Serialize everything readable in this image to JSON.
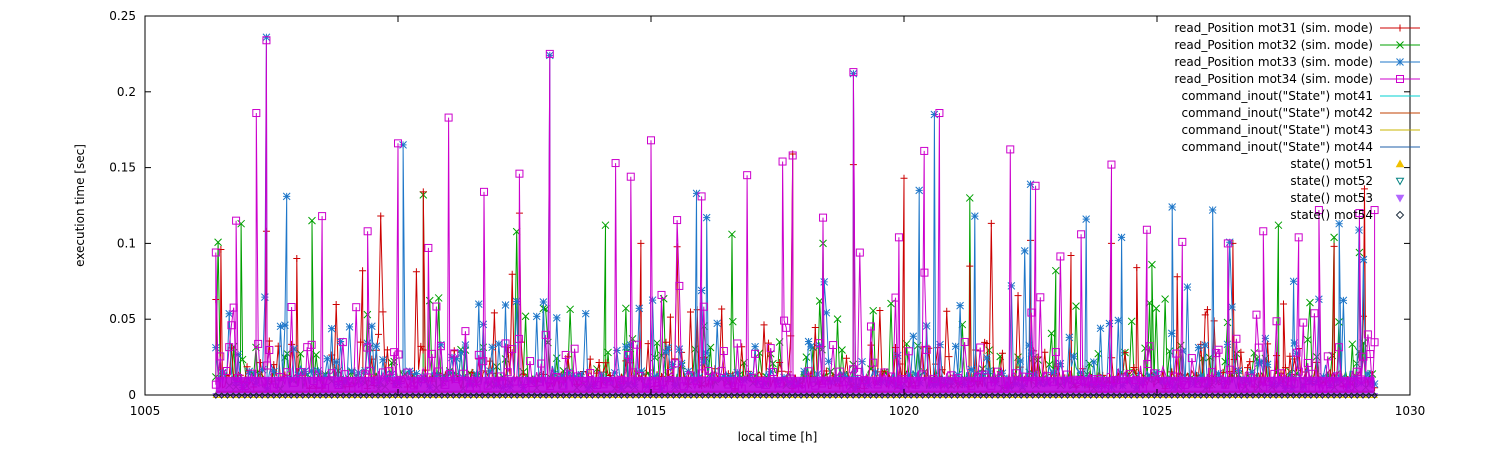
{
  "chart_data": {
    "type": "line",
    "xlabel": "local time [h]",
    "ylabel": "execution time [sec]",
    "xlim": [
      1005,
      1030
    ],
    "ylim": [
      0,
      0.25
    ],
    "x_ticks": [
      1005,
      1010,
      1015,
      1020,
      1025,
      1030
    ],
    "y_ticks": [
      0,
      0.05,
      0.1,
      0.15,
      0.2,
      0.25
    ],
    "x_tick_labels": [
      "1005",
      "1010",
      "1015",
      "1020",
      "1025",
      "1030"
    ],
    "y_tick_labels": [
      "0",
      "0.05",
      "0.1",
      "0.15",
      "0.2",
      "0.25"
    ],
    "grid": false,
    "legend_position": "top-right",
    "x_range": [
      1006.4,
      1029.3
    ],
    "series": [
      {
        "name": "read_Position mot31 (sim. mode)",
        "color": "#cc0000",
        "style": "linespoints",
        "marker": "plus",
        "peaks": [
          [
            1006.5,
            0.096
          ],
          [
            1007.4,
            0.108
          ],
          [
            1008.0,
            0.09
          ],
          [
            1009.3,
            0.082
          ],
          [
            1010.5,
            0.134
          ],
          [
            1012.4,
            0.12
          ],
          [
            1014.8,
            0.1
          ],
          [
            1017.8,
            0.159
          ],
          [
            1019.0,
            0.152
          ],
          [
            1020.0,
            0.143
          ],
          [
            1021.3,
            0.085
          ],
          [
            1022.5,
            0.102
          ],
          [
            1023.3,
            0.092
          ],
          [
            1024.1,
            0.1
          ],
          [
            1024.6,
            0.084
          ],
          [
            1025.4,
            0.078
          ],
          [
            1026.5,
            0.1
          ],
          [
            1027.5,
            0.06
          ],
          [
            1028.5,
            0.098
          ],
          [
            1029.1,
            0.136
          ]
        ]
      },
      {
        "name": "read_Position mot32 (sim. mode)",
        "color": "#00a000",
        "style": "linespoints",
        "marker": "cross",
        "peaks": [
          [
            1006.9,
            0.113
          ],
          [
            1008.3,
            0.115
          ],
          [
            1010.5,
            0.132
          ],
          [
            1014.1,
            0.112
          ],
          [
            1016.6,
            0.106
          ],
          [
            1018.4,
            0.1
          ],
          [
            1021.3,
            0.13
          ],
          [
            1023.0,
            0.082
          ],
          [
            1024.9,
            0.086
          ],
          [
            1027.4,
            0.112
          ],
          [
            1028.5,
            0.104
          ],
          [
            1029.0,
            0.094
          ]
        ]
      },
      {
        "name": "read_Position mot33 (sim. mode)",
        "color": "#1f77c9",
        "style": "linespoints",
        "marker": "star",
        "peaks": [
          [
            1007.4,
            0.236
          ],
          [
            1007.8,
            0.131
          ],
          [
            1010.1,
            0.165
          ],
          [
            1013.0,
            0.224
          ],
          [
            1015.9,
            0.133
          ],
          [
            1016.1,
            0.117
          ],
          [
            1019.0,
            0.212
          ],
          [
            1020.3,
            0.135
          ],
          [
            1020.6,
            0.185
          ],
          [
            1021.4,
            0.118
          ],
          [
            1022.5,
            0.139
          ],
          [
            1023.6,
            0.116
          ],
          [
            1024.3,
            0.104
          ],
          [
            1025.3,
            0.124
          ],
          [
            1026.1,
            0.122
          ],
          [
            1027.7,
            0.075
          ],
          [
            1028.6,
            0.113
          ]
        ]
      },
      {
        "name": "read_Position mot34 (sim. mode)",
        "color": "#cc00cc",
        "style": "linespoints",
        "marker": "square",
        "peaks": [
          [
            1006.4,
            0.094
          ],
          [
            1006.8,
            0.115
          ],
          [
            1007.2,
            0.186
          ],
          [
            1007.4,
            0.234
          ],
          [
            1008.5,
            0.118
          ],
          [
            1009.4,
            0.108
          ],
          [
            1010.0,
            0.166
          ],
          [
            1010.6,
            0.097
          ],
          [
            1011.0,
            0.183
          ],
          [
            1011.7,
            0.134
          ],
          [
            1012.4,
            0.146
          ],
          [
            1013.0,
            0.225
          ],
          [
            1014.3,
            0.153
          ],
          [
            1014.6,
            0.144
          ],
          [
            1015.0,
            0.168
          ],
          [
            1016.0,
            0.131
          ],
          [
            1016.9,
            0.145
          ],
          [
            1017.6,
            0.154
          ],
          [
            1017.8,
            0.158
          ],
          [
            1018.4,
            0.117
          ],
          [
            1019.0,
            0.213
          ],
          [
            1019.9,
            0.104
          ],
          [
            1020.4,
            0.161
          ],
          [
            1020.7,
            0.186
          ],
          [
            1022.1,
            0.162
          ],
          [
            1022.6,
            0.138
          ],
          [
            1023.5,
            0.106
          ],
          [
            1024.1,
            0.152
          ],
          [
            1024.8,
            0.109
          ],
          [
            1025.5,
            0.101
          ],
          [
            1026.4,
            0.1
          ],
          [
            1027.1,
            0.108
          ],
          [
            1027.8,
            0.104
          ],
          [
            1028.2,
            0.122
          ],
          [
            1029.0,
            0.12
          ],
          [
            1029.3,
            0.122
          ]
        ]
      },
      {
        "name": "command_inout(\"State\") mot41",
        "color": "#00d0d0",
        "style": "lines",
        "level": 0.002
      },
      {
        "name": "command_inout(\"State\") mot42",
        "color": "#c04000",
        "style": "lines",
        "level": 0.0015
      },
      {
        "name": "command_inout(\"State\") mot43",
        "color": "#c8b400",
        "style": "lines",
        "level": 0.001
      },
      {
        "name": "command_inout(\"State\") mot44",
        "color": "#1f5fa8",
        "style": "lines",
        "level": 0.0005
      },
      {
        "name": "state() mot51",
        "color": "#f0c000",
        "style": "points",
        "marker": "triangle-up",
        "level": 0.0
      },
      {
        "name": "state() mot52",
        "color": "#008080",
        "style": "points",
        "marker": "triangle-down",
        "level": 0.0
      },
      {
        "name": "state() mot53",
        "color": "#b266ff",
        "style": "points",
        "marker": "triangle-down-filled",
        "level": 0.0
      },
      {
        "name": "state() mot54",
        "color": "#203040",
        "style": "points",
        "marker": "diamond",
        "level": 0.0
      }
    ]
  }
}
